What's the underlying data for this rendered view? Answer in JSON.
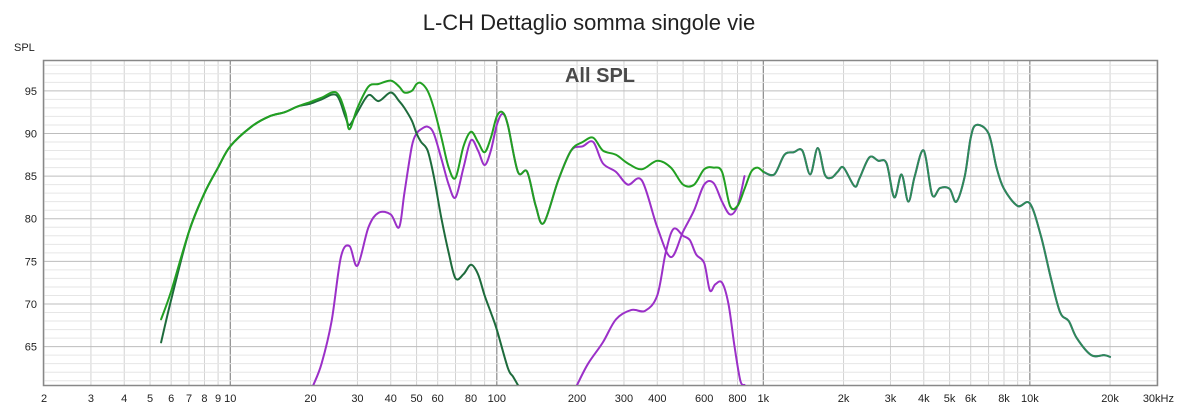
{
  "chart_data": {
    "type": "line",
    "title": "L-CH Dettaglio somma singole vie",
    "overlay_label": "All SPL",
    "ylabel": "SPL",
    "x_unit_label": "30kHz",
    "x_scale": "log",
    "xlim": [
      2,
      30000
    ],
    "ylim": [
      60.5,
      98.5
    ],
    "grid": true,
    "legend": "none",
    "y_ticks": [
      65,
      70,
      75,
      80,
      85,
      90,
      95
    ],
    "x_tick_labels": [
      {
        "v": 2,
        "t": "2"
      },
      {
        "v": 3,
        "t": "3"
      },
      {
        "v": 4,
        "t": "4"
      },
      {
        "v": 5,
        "t": "5"
      },
      {
        "v": 6,
        "t": "6"
      },
      {
        "v": 7,
        "t": "7"
      },
      {
        "v": 8,
        "t": "8"
      },
      {
        "v": 9,
        "t": "9"
      },
      {
        "v": 10,
        "t": "10"
      },
      {
        "v": 20,
        "t": "20"
      },
      {
        "v": 30,
        "t": "30"
      },
      {
        "v": 40,
        "t": "40"
      },
      {
        "v": 50,
        "t": "50"
      },
      {
        "v": 60,
        "t": "60"
      },
      {
        "v": 80,
        "t": "80"
      },
      {
        "v": 100,
        "t": "100"
      },
      {
        "v": 200,
        "t": "200"
      },
      {
        "v": 300,
        "t": "300"
      },
      {
        "v": 400,
        "t": "400"
      },
      {
        "v": 600,
        "t": "600"
      },
      {
        "v": 800,
        "t": "800"
      },
      {
        "v": 1000,
        "t": "1k"
      },
      {
        "v": 2000,
        "t": "2k"
      },
      {
        "v": 3000,
        "t": "3k"
      },
      {
        "v": 4000,
        "t": "4k"
      },
      {
        "v": 5000,
        "t": "5k"
      },
      {
        "v": 6000,
        "t": "6k"
      },
      {
        "v": 8000,
        "t": "8k"
      },
      {
        "v": 10000,
        "t": "10k"
      },
      {
        "v": 20000,
        "t": "20k"
      }
    ],
    "series": [
      {
        "color": "#8a2be2",
        "x": [
          1000,
          1100,
          1200,
          1300,
          1400,
          1500,
          1600,
          1700,
          1800,
          1900,
          2000,
          2200,
          2300,
          2500,
          2700,
          2900,
          3100,
          3300,
          3500,
          3700,
          4000,
          4300,
          4600,
          5000,
          5300,
          5700,
          6000,
          6300,
          7000,
          7500,
          8000,
          9000,
          10000,
          11000,
          12000,
          13000,
          14000,
          15000,
          17000,
          19000,
          20000
        ],
        "y": [
          85.5,
          85.2,
          87.5,
          87.8,
          88,
          85.2,
          88.3,
          85.2,
          84.8,
          85.5,
          86,
          83.8,
          84.8,
          87.2,
          86.8,
          86.5,
          82.5,
          85.2,
          82,
          85,
          88,
          82.8,
          83.6,
          83.5,
          82,
          85,
          89.5,
          91,
          90,
          86,
          83.5,
          81.5,
          81.8,
          78,
          73,
          69,
          68,
          66,
          64,
          64,
          63.8
        ]
      },
      {
        "color": "#2e8b57",
        "x": [
          1000,
          1100,
          1200,
          1300,
          1400,
          1500,
          1600,
          1700,
          1800,
          1900,
          2000,
          2200,
          2300,
          2500,
          2700,
          2900,
          3100,
          3300,
          3500,
          3700,
          4000,
          4300,
          4600,
          5000,
          5300,
          5700,
          6000,
          6300,
          7000,
          7500,
          8000,
          9000,
          10000,
          11000,
          12000,
          13000,
          14000,
          15000,
          17000,
          19000,
          20000
        ],
        "y": [
          85.5,
          85.2,
          87.5,
          87.8,
          88,
          85.2,
          88.3,
          85.2,
          84.8,
          85.5,
          86,
          83.8,
          84.8,
          87.2,
          86.8,
          86.5,
          82.5,
          85.2,
          82,
          85,
          88,
          82.8,
          83.6,
          83.5,
          82,
          85,
          89.5,
          91,
          90,
          86,
          83.5,
          81.5,
          81.8,
          78,
          73,
          69,
          68,
          66,
          64,
          64,
          63.8
        ]
      },
      {
        "color": "#9b30c8",
        "x": [
          20.5,
          22,
          24,
          26,
          28,
          30,
          33,
          36,
          40,
          43,
          45,
          48,
          50,
          52,
          55,
          58,
          62,
          66,
          70,
          75,
          80,
          85,
          90,
          95,
          100,
          105,
          110,
          120,
          130,
          140,
          150,
          170,
          190,
          210,
          230,
          250,
          280,
          310,
          350,
          400,
          450,
          500,
          550,
          600,
          650,
          700,
          750,
          800,
          850
        ],
        "y": [
          60.5,
          63,
          68,
          75.5,
          76.8,
          74.5,
          79,
          80.7,
          80.5,
          79,
          83,
          88.5,
          90,
          90.5,
          90.8,
          90,
          87,
          84,
          82.5,
          86,
          89.2,
          88,
          86.3,
          88,
          91,
          92.3,
          91,
          85.5,
          85.5,
          81.5,
          79.5,
          84.5,
          88,
          88.5,
          89,
          86.5,
          85.5,
          84,
          84.5,
          79,
          75.5,
          78.5,
          81,
          84,
          84.2,
          82,
          80.5,
          81.5,
          85
        ]
      },
      {
        "color": "#9b30c8",
        "x": [
          200,
          220,
          250,
          280,
          320,
          360,
          400,
          430,
          460,
          500,
          530,
          560,
          600,
          630,
          660,
          700,
          740,
          780,
          820,
          850
        ],
        "y": [
          60.5,
          63,
          65.5,
          68.2,
          69.3,
          69.2,
          71,
          76,
          78.8,
          78,
          77.5,
          75.8,
          74.8,
          71.6,
          72.3,
          72.5,
          70,
          65,
          61,
          60.5
        ]
      },
      {
        "color": "#1e6b3c",
        "x": [
          5.5,
          6,
          7,
          8,
          9,
          10,
          12,
          14,
          16,
          18,
          20,
          22,
          25,
          27,
          28,
          30,
          33,
          36,
          40,
          43,
          45,
          48,
          50,
          52,
          55,
          58,
          62,
          66,
          70,
          75,
          80,
          85,
          90,
          95,
          100,
          110,
          115,
          120
        ],
        "y": [
          65.5,
          70.5,
          78.5,
          83,
          86,
          88.5,
          90.8,
          92,
          92.5,
          93.2,
          93.5,
          94,
          94.5,
          92,
          91,
          92.5,
          94.5,
          93.8,
          94.8,
          93.8,
          93,
          91.5,
          90,
          89,
          88,
          85,
          80,
          76,
          73,
          73.5,
          74.6,
          73.5,
          71,
          69,
          67,
          62.5,
          61.5,
          60.5
        ]
      },
      {
        "color": "#22a022",
        "x": [
          5.5,
          6,
          7,
          8,
          9,
          10,
          12,
          14,
          16,
          18,
          20,
          22,
          25,
          27,
          28,
          30,
          33,
          36,
          40,
          43,
          45,
          48,
          50,
          52,
          55,
          58,
          62,
          66,
          70,
          75,
          80,
          85,
          90,
          95,
          100,
          105,
          110,
          120,
          130,
          140,
          150,
          170,
          190,
          210,
          230,
          250,
          280,
          310,
          350,
          400,
          450,
          500,
          550,
          600,
          650,
          700,
          750,
          800,
          850,
          900,
          950,
          1000
        ],
        "y": [
          68.2,
          71.5,
          78.5,
          83,
          86,
          88.5,
          90.8,
          92,
          92.5,
          93.2,
          93.7,
          94.2,
          94.8,
          92.5,
          90.5,
          93,
          95.5,
          95.8,
          96.2,
          95.5,
          94.8,
          95,
          95.8,
          95.9,
          95,
          93,
          89.5,
          86,
          84.8,
          88.5,
          90.2,
          89,
          87.8,
          89.5,
          92,
          92.5,
          91,
          85.5,
          85.5,
          81.5,
          79.5,
          84.5,
          88,
          89,
          89.5,
          88,
          87.5,
          86.5,
          85.8,
          86.8,
          86,
          84,
          84,
          85.8,
          86,
          85.5,
          81.5,
          81.5,
          83.5,
          85.5,
          86,
          85.5
        ]
      }
    ]
  }
}
